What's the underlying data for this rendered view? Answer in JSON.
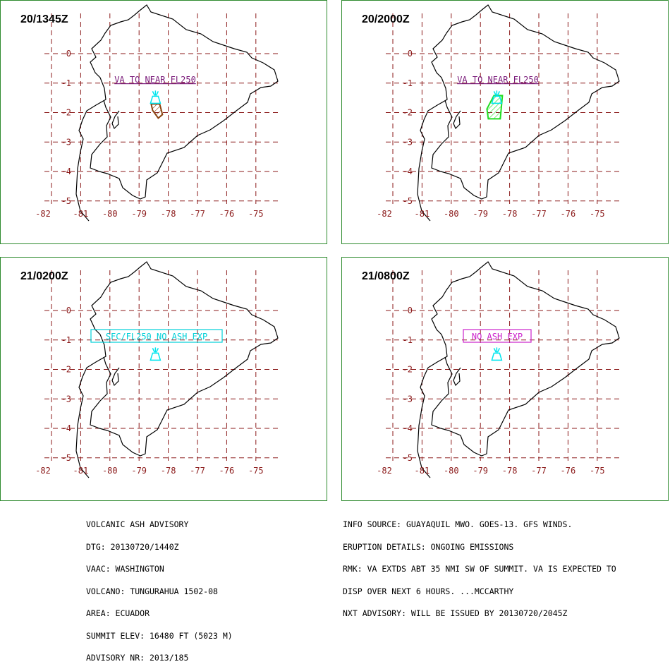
{
  "map_config": {
    "lon_ticks": [
      -82,
      -81,
      -80,
      -79,
      -78,
      -77,
      -76,
      -75
    ],
    "lat_ticks": [
      0,
      -1,
      -2,
      -3,
      -4,
      -5
    ],
    "grid_color": "#8b1a1a",
    "coast_color": "#000000",
    "volcano_color": "#00e5ee"
  },
  "panels": [
    {
      "id": "p1",
      "timestamp": "20/1345Z",
      "label": "VA TO NEAR FL250",
      "label_color": "#7a1a7a",
      "label_boxed": false,
      "polygon_color": "#8b4513",
      "show_polygon": true
    },
    {
      "id": "p2",
      "timestamp": "20/2000Z",
      "label": "VA TO NEAR FL250",
      "label_color": "#7a1a7a",
      "label_boxed": false,
      "polygon_color": "#22dd22",
      "show_polygon": true
    },
    {
      "id": "p3",
      "timestamp": "21/0200Z",
      "label": "SFC/FL250 NO ASH EXP",
      "label_color": "#00d0d8",
      "label_boxed": true,
      "polygon_color": "",
      "show_polygon": false
    },
    {
      "id": "p4",
      "timestamp": "21/0800Z",
      "label": "NO ASH EXP",
      "label_color": "#cc22cc",
      "label_boxed": true,
      "polygon_color": "",
      "show_polygon": false
    }
  ],
  "advisory_left": [
    "VOLCANIC ASH ADVISORY",
    "DTG: 20130720/1440Z",
    "VAAC: WASHINGTON",
    "VOLCANO: TUNGURAHUA 1502-08",
    "AREA: ECUADOR",
    "SUMMIT ELEV: 16480 FT (5023 M)",
    "ADVISORY NR: 2013/185"
  ],
  "advisory_right": [
    "INFO SOURCE: GUAYAQUIL MWO. GOES-13. GFS WINDS.",
    "ERUPTION DETAILS: ONGOING EMISSIONS",
    "RMK: VA EXTDS ABT 35 NMI SW OF SUMMIT. VA IS EXPECTED TO",
    "DISP OVER NEXT 6 HOURS. ...MCCARTHY",
    "NXT ADVISORY: WILL BE ISSUED BY 20130720/2045Z"
  ]
}
